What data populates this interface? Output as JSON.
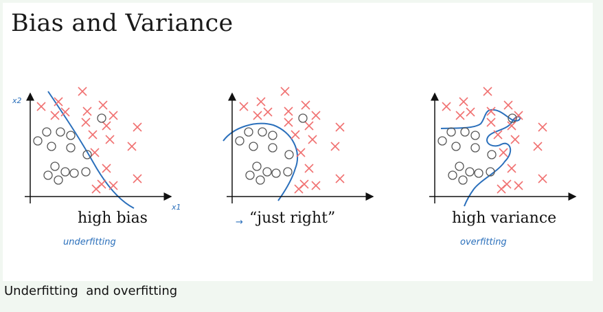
{
  "slide": {
    "title": "Bias and Variance"
  },
  "caption": "Underfitting  and overfitting",
  "panels": [
    {
      "id": "high-bias",
      "label": "high bias",
      "note": "underfitting",
      "arrow": false
    },
    {
      "id": "just-right",
      "label": "“just right”",
      "note": "",
      "arrow": true
    },
    {
      "id": "high-variance",
      "label": "high variance",
      "note": "overfitting",
      "arrow": false
    }
  ],
  "axes": {
    "x": "x1",
    "y": "x2"
  },
  "colors": {
    "cross": "#f07070",
    "circle": "#555555",
    "boundary": "#2a6fbb",
    "axis": "#111111"
  },
  "icons": {
    "arrow": "arrow-right-icon"
  }
}
